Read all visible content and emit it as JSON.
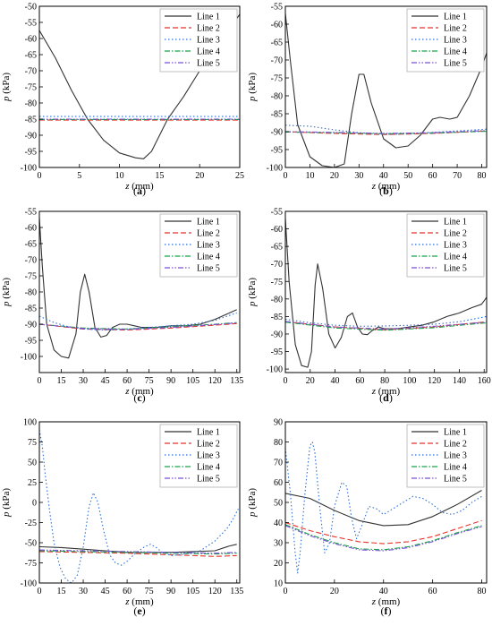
{
  "figure": {
    "panels": [
      {
        "id": "a",
        "caption": "(a)",
        "xlabel": "z (mm)",
        "ylabel": "p (kPa)"
      },
      {
        "id": "b",
        "caption": "(b)",
        "xlabel": "z (mm)",
        "ylabel": "p (kPa)"
      },
      {
        "id": "c",
        "caption": "(c)",
        "xlabel": "z (mm)",
        "ylabel": "p (kPa)"
      },
      {
        "id": "d",
        "caption": "(d)",
        "xlabel": "z (mm)",
        "ylabel": "p (kPa)"
      },
      {
        "id": "e",
        "caption": "(e)",
        "xlabel": "z (mm)",
        "ylabel": "p (kPa)"
      },
      {
        "id": "f",
        "caption": "(f)",
        "xlabel": "z (mm)",
        "ylabel": "p (kPa)"
      }
    ]
  },
  "series_styles": [
    {
      "name": "Line 1",
      "color": "#333333",
      "dash": ""
    },
    {
      "name": "Line 2",
      "color": "#e8312a",
      "dash": "6,3"
    },
    {
      "name": "Line 3",
      "color": "#2a6fd6",
      "dash": "1.5,2.5"
    },
    {
      "name": "Line 4",
      "color": "#17a34a",
      "dash": "6,2,1.5,2"
    },
    {
      "name": "Line 5",
      "color": "#7b4fd6",
      "dash": "6,2,1.5,2,1.5,2"
    }
  ],
  "chart_data": [
    {
      "type": "line",
      "panel": "a",
      "xlabel": "z (mm)",
      "ylabel": "p (kPa)",
      "xlim": [
        0,
        25
      ],
      "ylim": [
        -100,
        -50
      ],
      "xticks": [
        0,
        5,
        10,
        15,
        20,
        25
      ],
      "yticks": [
        -100,
        -95,
        -90,
        -85,
        -80,
        -75,
        -70,
        -65,
        -60,
        -55,
        -50
      ],
      "legend": "top-right",
      "series": [
        {
          "name": "Line 1",
          "x": [
            0,
            2,
            4,
            6,
            8,
            10,
            12,
            13,
            14,
            16,
            18,
            20,
            22,
            24,
            25
          ],
          "y": [
            -57.5,
            -66,
            -76,
            -85,
            -91.5,
            -95.5,
            -97,
            -97.3,
            -95,
            -85,
            -78,
            -70,
            -63,
            -56,
            -52.5
          ]
        },
        {
          "name": "Line 2",
          "x": [
            0,
            25
          ],
          "y": [
            -85.3,
            -85.3
          ]
        },
        {
          "name": "Line 3",
          "x": [
            0,
            25
          ],
          "y": [
            -84.2,
            -84.2
          ]
        },
        {
          "name": "Line 4",
          "x": [
            0,
            25
          ],
          "y": [
            -85.1,
            -85.1
          ]
        },
        {
          "name": "Line 5",
          "x": [
            0,
            25
          ],
          "y": [
            -85.0,
            -85.0
          ]
        }
      ]
    },
    {
      "type": "line",
      "panel": "b",
      "xlabel": "z (mm)",
      "ylabel": "p (kPa)",
      "xlim": [
        0,
        82
      ],
      "ylim": [
        -100,
        -55
      ],
      "xticks": [
        0,
        10,
        20,
        30,
        40,
        50,
        60,
        70,
        80
      ],
      "yticks": [
        -100,
        -95,
        -90,
        -85,
        -80,
        -75,
        -70,
        -65,
        -60,
        -55
      ],
      "legend": "top-right",
      "series": [
        {
          "name": "Line 1",
          "x": [
            0,
            2,
            5,
            10,
            15,
            20,
            24,
            27,
            30,
            32,
            35,
            40,
            45,
            50,
            55,
            60,
            63,
            67,
            70,
            75,
            80,
            82
          ],
          "y": [
            -57,
            -70,
            -88,
            -97,
            -99.5,
            -100,
            -99,
            -85,
            -74,
            -74,
            -82,
            -92,
            -94.5,
            -94,
            -91,
            -86.5,
            -86,
            -86.5,
            -86,
            -80,
            -72,
            -68
          ]
        },
        {
          "name": "Line 2",
          "x": [
            0,
            20,
            40,
            60,
            82
          ],
          "y": [
            -90,
            -90.5,
            -90.8,
            -90.5,
            -89.8
          ]
        },
        {
          "name": "Line 3",
          "x": [
            0,
            10,
            20,
            30,
            40,
            50,
            60,
            70,
            82
          ],
          "y": [
            -88.2,
            -88.5,
            -89.5,
            -90.3,
            -90.8,
            -90.6,
            -90.2,
            -89.8,
            -89.3
          ]
        },
        {
          "name": "Line 4",
          "x": [
            0,
            20,
            40,
            60,
            82
          ],
          "y": [
            -90.1,
            -90.3,
            -90.6,
            -90.4,
            -89.9
          ]
        },
        {
          "name": "Line 5",
          "x": [
            0,
            20,
            40,
            60,
            82
          ],
          "y": [
            -90.0,
            -90.2,
            -90.5,
            -90.3,
            -89.7
          ]
        }
      ]
    },
    {
      "type": "line",
      "panel": "c",
      "xlabel": "z (mm)",
      "ylabel": "p (kPa)",
      "xlim": [
        0,
        137
      ],
      "ylim": [
        -105,
        -55
      ],
      "xticks": [
        0,
        15,
        30,
        45,
        60,
        75,
        90,
        105,
        120,
        135
      ],
      "yticks": [
        -100,
        -95,
        -90,
        -85,
        -80,
        -75,
        -70,
        -65,
        -60,
        -55
      ],
      "legend": "top-right",
      "series": [
        {
          "name": "Line 1",
          "x": [
            0,
            2,
            5,
            10,
            15,
            20,
            25,
            28,
            31,
            34,
            38,
            42,
            46,
            50,
            55,
            60,
            65,
            70,
            80,
            90,
            100,
            110,
            120,
            130,
            135
          ],
          "y": [
            -57,
            -72,
            -90,
            -98,
            -100,
            -100.5,
            -93,
            -80,
            -74.5,
            -80,
            -91,
            -94,
            -93.5,
            -91,
            -90,
            -90,
            -90.5,
            -91,
            -91,
            -90.5,
            -90.5,
            -90,
            -88.5,
            -86.5,
            -85.5
          ]
        },
        {
          "name": "Line 2",
          "x": [
            0,
            30,
            60,
            90,
            120,
            135
          ],
          "y": [
            -90,
            -91.5,
            -91.8,
            -91.2,
            -90.3,
            -89.8
          ]
        },
        {
          "name": "Line 3",
          "x": [
            0,
            10,
            20,
            30,
            45,
            60,
            75,
            90,
            105,
            120,
            135
          ],
          "y": [
            -87.5,
            -89.5,
            -90.8,
            -91.5,
            -91.8,
            -91.5,
            -91,
            -90.5,
            -90,
            -88.8,
            -86.5
          ]
        },
        {
          "name": "Line 4",
          "x": [
            0,
            30,
            60,
            90,
            120,
            135
          ],
          "y": [
            -90,
            -91.2,
            -91.5,
            -90.8,
            -90,
            -89.5
          ]
        },
        {
          "name": "Line 5",
          "x": [
            0,
            30,
            60,
            90,
            120,
            135
          ],
          "y": [
            -90,
            -91.3,
            -91.6,
            -91,
            -90.1,
            -89.6
          ]
        }
      ]
    },
    {
      "type": "line",
      "panel": "d",
      "xlabel": "z (mm)",
      "ylabel": "p (kPa)",
      "xlim": [
        0,
        162
      ],
      "ylim": [
        -101,
        -55
      ],
      "xticks": [
        0,
        20,
        40,
        60,
        80,
        100,
        120,
        140,
        160
      ],
      "yticks": [
        -100,
        -95,
        -90,
        -85,
        -80,
        -75,
        -70,
        -65,
        -60,
        -55
      ],
      "legend": "top-right",
      "series": [
        {
          "name": "Line 1",
          "x": [
            0,
            3,
            8,
            13,
            18,
            21,
            24,
            26,
            30,
            35,
            40,
            45,
            50,
            54,
            58,
            62,
            66,
            70,
            75,
            80,
            90,
            100,
            110,
            120,
            130,
            140,
            150,
            158,
            162
          ],
          "y": [
            -57,
            -75,
            -93,
            -99,
            -99.5,
            -95,
            -76,
            -70,
            -77,
            -90,
            -94,
            -91,
            -85,
            -84,
            -88,
            -90,
            -90.2,
            -89,
            -88,
            -88.5,
            -88.5,
            -88,
            -87.5,
            -86.5,
            -85,
            -84,
            -82.5,
            -81.5,
            -79.5
          ]
        },
        {
          "name": "Line 2",
          "x": [
            0,
            40,
            80,
            120,
            162
          ],
          "y": [
            -86.5,
            -88,
            -88.8,
            -88,
            -86.5
          ]
        },
        {
          "name": "Line 3",
          "x": [
            0,
            20,
            40,
            60,
            80,
            100,
            120,
            140,
            162
          ],
          "y": [
            -85.8,
            -86.8,
            -87.5,
            -87.8,
            -87.7,
            -87.5,
            -87.2,
            -86.5,
            -85
          ]
        },
        {
          "name": "Line 4",
          "x": [
            0,
            40,
            80,
            120,
            162
          ],
          "y": [
            -86.6,
            -88.3,
            -88.9,
            -88.2,
            -86.8
          ]
        },
        {
          "name": "Line 5",
          "x": [
            0,
            40,
            80,
            120,
            162
          ],
          "y": [
            -86.4,
            -88,
            -88.6,
            -87.8,
            -86.6
          ]
        }
      ]
    },
    {
      "type": "line",
      "panel": "e",
      "xlabel": "z (mm)",
      "ylabel": "p (kPa)",
      "xlim": [
        0,
        137
      ],
      "ylim": [
        -100,
        100
      ],
      "xticks": [
        0,
        15,
        30,
        45,
        60,
        75,
        90,
        105,
        120,
        135
      ],
      "yticks": [
        -100,
        -75,
        -50,
        -25,
        0,
        25,
        50,
        75,
        100
      ],
      "legend": "top-right",
      "series": [
        {
          "name": "Line 1",
          "x": [
            0,
            15,
            30,
            45,
            60,
            75,
            90,
            105,
            120,
            130,
            135
          ],
          "y": [
            -55,
            -56,
            -58,
            -60,
            -62,
            -62,
            -62,
            -61,
            -60,
            -54,
            -52
          ]
        },
        {
          "name": "Line 2",
          "x": [
            0,
            30,
            60,
            90,
            120,
            135
          ],
          "y": [
            -61,
            -62,
            -63,
            -65,
            -67,
            -66
          ]
        },
        {
          "name": "Line 3",
          "x": [
            0,
            2,
            4,
            7,
            10,
            14,
            18,
            22,
            26,
            30,
            34,
            37,
            40,
            44,
            48,
            52,
            56,
            60,
            64,
            68,
            72,
            76,
            80,
            84,
            90,
            100,
            110,
            120,
            128,
            132,
            136
          ],
          "y": [
            90,
            70,
            35,
            -10,
            -50,
            -80,
            -95,
            -100,
            -90,
            -55,
            -5,
            12,
            0,
            -35,
            -65,
            -75,
            -78,
            -73,
            -66,
            -60,
            -55,
            -52,
            -56,
            -62,
            -66,
            -64,
            -60,
            -48,
            -33,
            -22,
            -8
          ]
        },
        {
          "name": "Line 4",
          "x": [
            0,
            30,
            60,
            90,
            120,
            135
          ],
          "y": [
            -60,
            -61,
            -62,
            -63,
            -64,
            -63
          ]
        },
        {
          "name": "Line 5",
          "x": [
            0,
            30,
            60,
            90,
            120,
            135
          ],
          "y": [
            -59,
            -60,
            -61,
            -62,
            -63,
            -62
          ]
        }
      ]
    },
    {
      "type": "line",
      "panel": "f",
      "xlabel": "z (mm)",
      "ylabel": "p (kPa)",
      "xlim": [
        0,
        82
      ],
      "ylim": [
        10,
        90
      ],
      "xticks": [
        0,
        20,
        40,
        60,
        80
      ],
      "yticks": [
        10,
        20,
        30,
        40,
        50,
        60,
        70,
        80,
        90
      ],
      "legend": "top-right",
      "series": [
        {
          "name": "Line 1",
          "x": [
            0,
            10,
            20,
            30,
            40,
            50,
            60,
            70,
            80
          ],
          "y": [
            54.5,
            52,
            46,
            41,
            38.5,
            39,
            43,
            49,
            56
          ]
        },
        {
          "name": "Line 2",
          "x": [
            0,
            10,
            20,
            30,
            40,
            50,
            60,
            70,
            80
          ],
          "y": [
            40,
            36,
            33,
            30.5,
            29.5,
            30.5,
            33,
            37,
            41
          ]
        },
        {
          "name": "Line 3",
          "x": [
            0,
            2,
            4,
            5,
            6,
            8,
            10,
            11,
            12,
            14,
            16,
            18,
            20,
            23,
            25,
            27,
            29,
            31,
            34,
            37,
            40,
            44,
            48,
            52,
            56,
            60,
            64,
            68,
            72,
            76,
            80
          ],
          "y": [
            77,
            55,
            25,
            15,
            25,
            55,
            78,
            80,
            75,
            48,
            25,
            30,
            48,
            60,
            58,
            42,
            32,
            38,
            48,
            47,
            44,
            47,
            50,
            53,
            52,
            49,
            45,
            44,
            46,
            50,
            53
          ]
        },
        {
          "name": "Line 4",
          "x": [
            0,
            10,
            20,
            30,
            40,
            50,
            60,
            70,
            80
          ],
          "y": [
            39,
            34,
            30,
            27,
            26.5,
            28,
            31,
            35,
            38.5
          ]
        },
        {
          "name": "Line 5",
          "x": [
            0,
            10,
            20,
            30,
            40,
            50,
            60,
            70,
            80
          ],
          "y": [
            38.5,
            33.5,
            29.5,
            26.5,
            26,
            27.5,
            30.5,
            34.5,
            38
          ]
        }
      ]
    }
  ]
}
